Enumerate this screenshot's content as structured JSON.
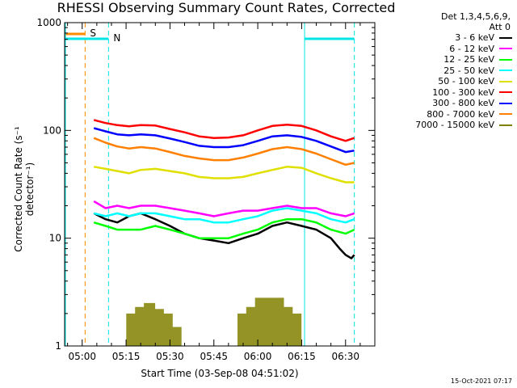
{
  "chart_data": {
    "type": "line",
    "title": "RHESSI Observing Summary Count Rates, Corrected",
    "xlabel": "Start Time (03-Sep-08 04:51:02)",
    "ylabel": "Corrected Count Rate (s⁻¹ detector⁻¹)",
    "yscale": "log",
    "ylim": [
      1,
      1000
    ],
    "xlim_minutes": [
      -6,
      100
    ],
    "x_tick_labels": [
      "05:00",
      "05:15",
      "05:30",
      "05:45",
      "06:00",
      "06:15",
      "06:30"
    ],
    "x_tick_minutes": [
      0,
      15,
      30,
      45,
      60,
      75,
      90
    ],
    "y_tick_labels": [
      "1",
      "10",
      "100",
      "1000"
    ],
    "y_tick_values": [
      1,
      10,
      100,
      1000
    ],
    "legend_header": [
      "Det 1,3,4,5,6,9,",
      "Att 0"
    ],
    "legend_position": "right",
    "markers": {
      "saa": {
        "label": "S",
        "color": "#ff8c00",
        "bar_start": -6,
        "bar_end": 1,
        "line_at": 1
      },
      "night": {
        "label": "N",
        "color": "#00e5e5",
        "bar1_start": -6,
        "bar1_end": 9,
        "line1_at": 9,
        "bar2_start": 76,
        "bar2_end": 93,
        "line2_at": 93
      }
    },
    "series": [
      {
        "name": "3 - 6 keV",
        "color": "#000000",
        "points": [
          [
            4,
            17
          ],
          [
            8,
            15
          ],
          [
            12,
            14
          ],
          [
            16,
            16
          ],
          [
            20,
            17
          ],
          [
            25,
            15
          ],
          [
            30,
            13
          ],
          [
            35,
            11
          ],
          [
            40,
            10
          ],
          [
            45,
            9.5
          ],
          [
            50,
            9
          ],
          [
            55,
            10
          ],
          [
            60,
            11
          ],
          [
            65,
            13
          ],
          [
            70,
            14
          ],
          [
            75,
            13
          ],
          [
            80,
            12
          ],
          [
            85,
            10
          ],
          [
            88,
            8
          ],
          [
            90,
            7
          ],
          [
            92,
            6.5
          ],
          [
            93,
            7
          ]
        ]
      },
      {
        "name": "6 - 12 keV",
        "color": "#ff00ff",
        "points": [
          [
            4,
            22
          ],
          [
            8,
            19
          ],
          [
            12,
            20
          ],
          [
            16,
            19
          ],
          [
            20,
            20
          ],
          [
            25,
            20
          ],
          [
            30,
            19
          ],
          [
            35,
            18
          ],
          [
            40,
            17
          ],
          [
            45,
            16
          ],
          [
            50,
            17
          ],
          [
            55,
            18
          ],
          [
            60,
            18
          ],
          [
            65,
            19
          ],
          [
            70,
            20
          ],
          [
            75,
            19
          ],
          [
            80,
            19
          ],
          [
            85,
            17
          ],
          [
            90,
            16
          ],
          [
            93,
            17
          ]
        ]
      },
      {
        "name": "12 - 25 keV",
        "color": "#00ff00",
        "points": [
          [
            4,
            14
          ],
          [
            8,
            13
          ],
          [
            12,
            12
          ],
          [
            16,
            12
          ],
          [
            20,
            12
          ],
          [
            25,
            13
          ],
          [
            30,
            12
          ],
          [
            35,
            11
          ],
          [
            40,
            10
          ],
          [
            45,
            10
          ],
          [
            50,
            10
          ],
          [
            55,
            11
          ],
          [
            60,
            12
          ],
          [
            65,
            14
          ],
          [
            70,
            15
          ],
          [
            75,
            15
          ],
          [
            80,
            14
          ],
          [
            85,
            12
          ],
          [
            90,
            11
          ],
          [
            93,
            12
          ]
        ]
      },
      {
        "name": "25 - 50 keV",
        "color": "#00ffff",
        "points": [
          [
            4,
            17
          ],
          [
            8,
            16
          ],
          [
            12,
            17
          ],
          [
            16,
            16
          ],
          [
            20,
            17
          ],
          [
            25,
            17
          ],
          [
            30,
            16
          ],
          [
            35,
            15
          ],
          [
            40,
            15
          ],
          [
            45,
            14
          ],
          [
            50,
            14
          ],
          [
            55,
            15
          ],
          [
            60,
            16
          ],
          [
            65,
            18
          ],
          [
            70,
            19
          ],
          [
            75,
            18
          ],
          [
            80,
            17
          ],
          [
            85,
            15
          ],
          [
            90,
            14
          ],
          [
            93,
            15
          ]
        ]
      },
      {
        "name": "50 - 100 keV",
        "color": "#e0e000",
        "points": [
          [
            4,
            46
          ],
          [
            8,
            44
          ],
          [
            12,
            42
          ],
          [
            16,
            40
          ],
          [
            20,
            43
          ],
          [
            25,
            44
          ],
          [
            30,
            42
          ],
          [
            35,
            40
          ],
          [
            40,
            37
          ],
          [
            45,
            36
          ],
          [
            50,
            36
          ],
          [
            55,
            37
          ],
          [
            60,
            40
          ],
          [
            65,
            43
          ],
          [
            70,
            46
          ],
          [
            75,
            45
          ],
          [
            80,
            40
          ],
          [
            85,
            36
          ],
          [
            90,
            33
          ],
          [
            93,
            33
          ]
        ]
      },
      {
        "name": "100 - 300 keV",
        "color": "#ff0000",
        "points": [
          [
            4,
            125
          ],
          [
            8,
            117
          ],
          [
            12,
            112
          ],
          [
            16,
            109
          ],
          [
            20,
            112
          ],
          [
            25,
            111
          ],
          [
            30,
            103
          ],
          [
            35,
            96
          ],
          [
            40,
            88
          ],
          [
            45,
            85
          ],
          [
            50,
            86
          ],
          [
            55,
            90
          ],
          [
            60,
            100
          ],
          [
            65,
            110
          ],
          [
            70,
            113
          ],
          [
            75,
            110
          ],
          [
            80,
            100
          ],
          [
            85,
            88
          ],
          [
            90,
            80
          ],
          [
            93,
            85
          ]
        ]
      },
      {
        "name": "300 - 800 keV",
        "color": "#0000ff",
        "points": [
          [
            4,
            105
          ],
          [
            8,
            98
          ],
          [
            12,
            92
          ],
          [
            16,
            90
          ],
          [
            20,
            92
          ],
          [
            25,
            90
          ],
          [
            30,
            84
          ],
          [
            35,
            78
          ],
          [
            40,
            72
          ],
          [
            45,
            70
          ],
          [
            50,
            70
          ],
          [
            55,
            73
          ],
          [
            60,
            80
          ],
          [
            65,
            88
          ],
          [
            70,
            90
          ],
          [
            75,
            87
          ],
          [
            80,
            80
          ],
          [
            85,
            71
          ],
          [
            90,
            63
          ],
          [
            93,
            65
          ]
        ]
      },
      {
        "name": "800 - 7000 keV",
        "color": "#ff7f00",
        "points": [
          [
            4,
            85
          ],
          [
            8,
            77
          ],
          [
            12,
            71
          ],
          [
            16,
            68
          ],
          [
            20,
            70
          ],
          [
            25,
            68
          ],
          [
            30,
            63
          ],
          [
            35,
            58
          ],
          [
            40,
            55
          ],
          [
            45,
            53
          ],
          [
            50,
            53
          ],
          [
            55,
            56
          ],
          [
            60,
            61
          ],
          [
            65,
            67
          ],
          [
            70,
            70
          ],
          [
            75,
            67
          ],
          [
            80,
            61
          ],
          [
            85,
            54
          ],
          [
            90,
            48
          ],
          [
            93,
            50
          ]
        ]
      },
      {
        "name": "7000 - 15000 keV",
        "color": "#808000",
        "points": [
          [
            17,
            2.0
          ],
          [
            17,
            1.0
          ],
          [
            20,
            2.3
          ],
          [
            20,
            1.0
          ],
          [
            23,
            2.5
          ],
          [
            23,
            1.0
          ],
          [
            26,
            2.2
          ],
          [
            26,
            1.0
          ],
          [
            29,
            2.0
          ],
          [
            29,
            1.0
          ],
          [
            32,
            1.5
          ],
          [
            32,
            1.0
          ],
          [
            55,
            2.0
          ],
          [
            55,
            1.0
          ],
          [
            58,
            2.3
          ],
          [
            58,
            1.0
          ],
          [
            61,
            2.8
          ],
          [
            61,
            1.0
          ],
          [
            64,
            2.8
          ],
          [
            64,
            1.0
          ],
          [
            67,
            2.8
          ],
          [
            67,
            1.0
          ],
          [
            70,
            2.3
          ],
          [
            70,
            1.0
          ],
          [
            73,
            2.0
          ],
          [
            73,
            1.0
          ]
        ]
      }
    ]
  },
  "footer_date": "15-Oct-2021 07:17"
}
